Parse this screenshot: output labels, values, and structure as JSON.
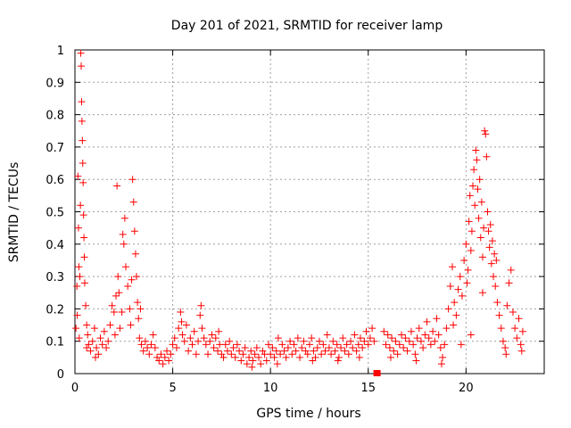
{
  "chart_data": {
    "type": "scatter",
    "title": "Day 201 of 2021, SRMTID for receiver lamp",
    "xlabel": "GPS time / hours",
    "ylabel": "SRMTID / TECUs",
    "xlim": [
      0,
      24
    ],
    "ylim": [
      0,
      1
    ],
    "xticks": [
      0,
      5,
      10,
      15,
      20
    ],
    "yticks": [
      0,
      0.1,
      0.2,
      0.3,
      0.4,
      0.5,
      0.6,
      0.7,
      0.8,
      0.9,
      1
    ],
    "xtick_labels": [
      "0",
      "5",
      "10",
      "15",
      "20"
    ],
    "ytick_labels": [
      "0",
      "0.1",
      "0.2",
      "0.3",
      "0.4",
      "0.5",
      "0.6",
      "0.7",
      "0.8",
      "0.9",
      "1"
    ],
    "grid": true,
    "marker": "plus",
    "marker_color": "#ff0000",
    "series": [
      {
        "name": "SRMTID",
        "points": [
          [
            0.05,
            0.14
          ],
          [
            0.1,
            0.27
          ],
          [
            0.12,
            0.18
          ],
          [
            0.15,
            0.61
          ],
          [
            0.18,
            0.45
          ],
          [
            0.2,
            0.33
          ],
          [
            0.22,
            0.11
          ],
          [
            0.25,
            0.3
          ],
          [
            0.28,
            0.52
          ],
          [
            0.3,
            0.99
          ],
          [
            0.32,
            0.95
          ],
          [
            0.34,
            0.84
          ],
          [
            0.36,
            0.78
          ],
          [
            0.38,
            0.72
          ],
          [
            0.4,
            0.65
          ],
          [
            0.42,
            0.59
          ],
          [
            0.44,
            0.49
          ],
          [
            0.46,
            0.42
          ],
          [
            0.48,
            0.36
          ],
          [
            0.5,
            0.28
          ],
          [
            0.55,
            0.21
          ],
          [
            0.6,
            0.15
          ],
          [
            0.65,
            0.12
          ],
          [
            0.7,
            0.09
          ],
          [
            0.8,
            0.07
          ],
          [
            0.9,
            0.1
          ],
          [
            1.0,
            0.14
          ],
          [
            1.1,
            0.08
          ],
          [
            1.2,
            0.06
          ],
          [
            1.3,
            0.11
          ],
          [
            1.4,
            0.09
          ],
          [
            1.5,
            0.13
          ],
          [
            1.6,
            0.08
          ],
          [
            1.7,
            0.1
          ],
          [
            1.8,
            0.15
          ],
          [
            1.9,
            0.21
          ],
          [
            2.0,
            0.19
          ],
          [
            2.1,
            0.24
          ],
          [
            2.15,
            0.58
          ],
          [
            2.2,
            0.3
          ],
          [
            2.25,
            0.25
          ],
          [
            2.3,
            0.14
          ],
          [
            2.4,
            0.19
          ],
          [
            2.45,
            0.43
          ],
          [
            2.5,
            0.4
          ],
          [
            2.55,
            0.48
          ],
          [
            2.6,
            0.33
          ],
          [
            2.7,
            0.27
          ],
          [
            2.8,
            0.2
          ],
          [
            2.85,
            0.15
          ],
          [
            2.9,
            0.29
          ],
          [
            2.95,
            0.6
          ],
          [
            3.0,
            0.53
          ],
          [
            3.05,
            0.44
          ],
          [
            3.1,
            0.37
          ],
          [
            3.15,
            0.3
          ],
          [
            3.2,
            0.22
          ],
          [
            3.25,
            0.17
          ],
          [
            3.3,
            0.11
          ],
          [
            3.4,
            0.09
          ],
          [
            3.5,
            0.07
          ],
          [
            3.6,
            0.1
          ],
          [
            3.7,
            0.08
          ],
          [
            3.8,
            0.06
          ],
          [
            3.9,
            0.09
          ],
          [
            4.0,
            0.12
          ],
          [
            4.1,
            0.08
          ],
          [
            4.2,
            0.05
          ],
          [
            4.3,
            0.04
          ],
          [
            4.4,
            0.06
          ],
          [
            4.5,
            0.03
          ],
          [
            4.6,
            0.05
          ],
          [
            4.7,
            0.07
          ],
          [
            4.8,
            0.04
          ],
          [
            4.9,
            0.06
          ],
          [
            5.0,
            0.09
          ],
          [
            5.1,
            0.11
          ],
          [
            5.2,
            0.08
          ],
          [
            5.3,
            0.14
          ],
          [
            5.4,
            0.19
          ],
          [
            5.5,
            0.12
          ],
          [
            5.6,
            0.1
          ],
          [
            5.7,
            0.15
          ],
          [
            5.8,
            0.07
          ],
          [
            5.9,
            0.11
          ],
          [
            6.0,
            0.09
          ],
          [
            6.1,
            0.13
          ],
          [
            6.2,
            0.06
          ],
          [
            6.3,
            0.1
          ],
          [
            6.4,
            0.18
          ],
          [
            6.5,
            0.14
          ],
          [
            6.6,
            0.11
          ],
          [
            6.7,
            0.09
          ],
          [
            6.8,
            0.06
          ],
          [
            6.9,
            0.1
          ],
          [
            7.0,
            0.12
          ],
          [
            7.1,
            0.08
          ],
          [
            7.2,
            0.11
          ],
          [
            7.3,
            0.07
          ],
          [
            7.4,
            0.09
          ],
          [
            7.5,
            0.06
          ],
          [
            7.6,
            0.05
          ],
          [
            7.7,
            0.09
          ],
          [
            7.8,
            0.07
          ],
          [
            7.9,
            0.1
          ],
          [
            8.0,
            0.06
          ],
          [
            8.1,
            0.08
          ],
          [
            8.2,
            0.05
          ],
          [
            8.3,
            0.09
          ],
          [
            8.4,
            0.07
          ],
          [
            8.5,
            0.04
          ],
          [
            8.6,
            0.06
          ],
          [
            8.7,
            0.08
          ],
          [
            8.8,
            0.03
          ],
          [
            8.9,
            0.05
          ],
          [
            9.0,
            0.07
          ],
          [
            9.1,
            0.04
          ],
          [
            9.2,
            0.06
          ],
          [
            9.3,
            0.08
          ],
          [
            9.4,
            0.05
          ],
          [
            9.5,
            0.03
          ],
          [
            9.6,
            0.07
          ],
          [
            9.7,
            0.06
          ],
          [
            9.8,
            0.04
          ],
          [
            9.9,
            0.09
          ],
          [
            10.0,
            0.06
          ],
          [
            10.1,
            0.08
          ],
          [
            10.2,
            0.05
          ],
          [
            10.3,
            0.07
          ],
          [
            10.4,
            0.11
          ],
          [
            10.5,
            0.06
          ],
          [
            10.6,
            0.09
          ],
          [
            10.7,
            0.07
          ],
          [
            10.8,
            0.05
          ],
          [
            10.9,
            0.08
          ],
          [
            11.0,
            0.1
          ],
          [
            11.1,
            0.06
          ],
          [
            11.2,
            0.09
          ],
          [
            11.3,
            0.07
          ],
          [
            11.4,
            0.11
          ],
          [
            11.5,
            0.05
          ],
          [
            11.6,
            0.08
          ],
          [
            11.7,
            0.1
          ],
          [
            11.8,
            0.07
          ],
          [
            11.9,
            0.06
          ],
          [
            12.0,
            0.09
          ],
          [
            12.1,
            0.11
          ],
          [
            12.2,
            0.07
          ],
          [
            12.3,
            0.05
          ],
          [
            12.4,
            0.08
          ],
          [
            12.5,
            0.1
          ],
          [
            12.6,
            0.06
          ],
          [
            12.7,
            0.09
          ],
          [
            12.8,
            0.07
          ],
          [
            12.9,
            0.12
          ],
          [
            13.0,
            0.08
          ],
          [
            13.1,
            0.06
          ],
          [
            13.2,
            0.1
          ],
          [
            13.3,
            0.07
          ],
          [
            13.4,
            0.09
          ],
          [
            13.5,
            0.05
          ],
          [
            13.6,
            0.08
          ],
          [
            13.7,
            0.11
          ],
          [
            13.8,
            0.07
          ],
          [
            13.9,
            0.09
          ],
          [
            14.0,
            0.06
          ],
          [
            14.1,
            0.1
          ],
          [
            14.2,
            0.08
          ],
          [
            14.3,
            0.12
          ],
          [
            14.4,
            0.07
          ],
          [
            14.5,
            0.09
          ],
          [
            14.6,
            0.11
          ],
          [
            14.7,
            0.08
          ],
          [
            14.8,
            0.1
          ],
          [
            14.9,
            0.13
          ],
          [
            15.0,
            0.09
          ],
          [
            15.1,
            0.11
          ],
          [
            15.2,
            0.14
          ],
          [
            15.3,
            0.1
          ],
          [
            15.8,
            0.13
          ],
          [
            15.9,
            0.09
          ],
          [
            16.0,
            0.12
          ],
          [
            16.1,
            0.08
          ],
          [
            16.2,
            0.11
          ],
          [
            16.3,
            0.07
          ],
          [
            16.4,
            0.1
          ],
          [
            16.5,
            0.06
          ],
          [
            16.6,
            0.09
          ],
          [
            16.7,
            0.12
          ],
          [
            16.8,
            0.08
          ],
          [
            16.9,
            0.11
          ],
          [
            17.0,
            0.07
          ],
          [
            17.1,
            0.1
          ],
          [
            17.2,
            0.13
          ],
          [
            17.3,
            0.09
          ],
          [
            17.4,
            0.06
          ],
          [
            17.5,
            0.11
          ],
          [
            17.6,
            0.14
          ],
          [
            17.7,
            0.1
          ],
          [
            17.8,
            0.08
          ],
          [
            17.9,
            0.12
          ],
          [
            18.0,
            0.16
          ],
          [
            18.1,
            0.11
          ],
          [
            18.2,
            0.09
          ],
          [
            18.3,
            0.13
          ],
          [
            18.4,
            0.1
          ],
          [
            18.5,
            0.17
          ],
          [
            18.6,
            0.12
          ],
          [
            18.7,
            0.08
          ],
          [
            18.8,
            0.05
          ],
          [
            18.9,
            0.09
          ],
          [
            19.0,
            0.14
          ],
          [
            19.1,
            0.2
          ],
          [
            19.2,
            0.27
          ],
          [
            19.3,
            0.33
          ],
          [
            19.4,
            0.22
          ],
          [
            19.5,
            0.18
          ],
          [
            19.6,
            0.26
          ],
          [
            19.7,
            0.3
          ],
          [
            19.8,
            0.24
          ],
          [
            19.9,
            0.35
          ],
          [
            20.0,
            0.4
          ],
          [
            20.05,
            0.28
          ],
          [
            20.1,
            0.32
          ],
          [
            20.15,
            0.47
          ],
          [
            20.2,
            0.55
          ],
          [
            20.25,
            0.38
          ],
          [
            20.3,
            0.44
          ],
          [
            20.35,
            0.58
          ],
          [
            20.4,
            0.63
          ],
          [
            20.45,
            0.52
          ],
          [
            20.5,
            0.69
          ],
          [
            20.55,
            0.66
          ],
          [
            20.6,
            0.57
          ],
          [
            20.65,
            0.48
          ],
          [
            20.7,
            0.6
          ],
          [
            20.75,
            0.42
          ],
          [
            20.8,
            0.53
          ],
          [
            20.85,
            0.36
          ],
          [
            20.9,
            0.45
          ],
          [
            20.95,
            0.75
          ],
          [
            21.0,
            0.74
          ],
          [
            21.05,
            0.67
          ],
          [
            21.1,
            0.5
          ],
          [
            21.15,
            0.44
          ],
          [
            21.2,
            0.39
          ],
          [
            21.25,
            0.46
          ],
          [
            21.3,
            0.34
          ],
          [
            21.35,
            0.41
          ],
          [
            21.4,
            0.3
          ],
          [
            21.45,
            0.37
          ],
          [
            21.5,
            0.27
          ],
          [
            21.6,
            0.22
          ],
          [
            21.7,
            0.18
          ],
          [
            21.8,
            0.14
          ],
          [
            21.9,
            0.1
          ],
          [
            22.0,
            0.08
          ],
          [
            22.1,
            0.21
          ],
          [
            22.2,
            0.28
          ],
          [
            22.3,
            0.32
          ],
          [
            22.4,
            0.19
          ],
          [
            22.5,
            0.14
          ],
          [
            22.6,
            0.11
          ],
          [
            22.7,
            0.17
          ],
          [
            22.8,
            0.09
          ],
          [
            22.9,
            0.13
          ],
          [
            0.6,
            0.08
          ],
          [
            1.05,
            0.05
          ],
          [
            2.05,
            0.12
          ],
          [
            3.35,
            0.2
          ],
          [
            5.45,
            0.16
          ],
          [
            6.45,
            0.21
          ],
          [
            7.35,
            0.13
          ],
          [
            9.05,
            0.02
          ],
          [
            10.35,
            0.03
          ],
          [
            12.15,
            0.04
          ],
          [
            13.45,
            0.04
          ],
          [
            14.55,
            0.05
          ],
          [
            16.15,
            0.05
          ],
          [
            17.45,
            0.04
          ],
          [
            18.75,
            0.03
          ],
          [
            19.35,
            0.15
          ],
          [
            19.75,
            0.09
          ],
          [
            20.25,
            0.12
          ],
          [
            20.85,
            0.25
          ],
          [
            21.55,
            0.35
          ],
          [
            22.05,
            0.06
          ],
          [
            22.85,
            0.07
          ]
        ]
      }
    ],
    "highlight_points": [
      [
        15.45,
        0.0
      ]
    ]
  }
}
